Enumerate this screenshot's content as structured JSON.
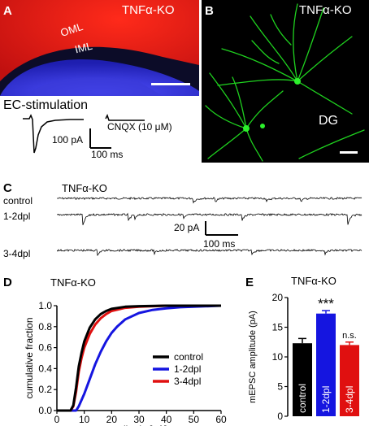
{
  "panels": {
    "A": {
      "letter": "A",
      "label": "TNFα-KO",
      "oml": "OML",
      "iml": "IML",
      "ec_title": "EC-stimulation",
      "cnqx": "CNQX (10 μM)",
      "scale_y": "100 pA",
      "scale_x": "100 ms"
    },
    "B": {
      "letter": "B",
      "label": "TNFα-KO",
      "dg": "DG"
    },
    "C": {
      "letter": "C",
      "label": "TNFα-KO",
      "rows": [
        "control",
        "1-2dpl",
        "3-4dpl"
      ],
      "scale_y": "20 pA",
      "scale_x": "100 ms"
    },
    "D": {
      "letter": "D",
      "label": "TNFα-KO"
    },
    "E": {
      "letter": "E",
      "label": "TNFα-KO"
    }
  },
  "colors": {
    "control": "#000000",
    "dpl12": "#1515e0",
    "dpl34": "#e01010"
  },
  "chart_data": [
    {
      "type": "line",
      "panel": "D",
      "xlabel": "amplitude [pA]",
      "ylabel": "cumulative fraction",
      "xlim": [
        0,
        60
      ],
      "ylim": [
        0,
        1.0
      ],
      "xticks": [
        "0",
        "10",
        "20",
        "30",
        "40",
        "50",
        "60"
      ],
      "yticks": [
        "0.0",
        "0.2",
        "0.4",
        "0.6",
        "0.8",
        "1.0"
      ],
      "legend_position": "bottom-right",
      "series": [
        {
          "name": "control",
          "color": "#000000",
          "x": [
            0,
            5,
            6,
            7,
            8,
            9,
            10,
            12,
            14,
            16,
            18,
            20,
            25,
            30,
            40,
            60
          ],
          "y": [
            0,
            0,
            0.05,
            0.22,
            0.42,
            0.55,
            0.66,
            0.79,
            0.87,
            0.92,
            0.95,
            0.97,
            0.99,
            0.995,
            1.0,
            1.0
          ]
        },
        {
          "name": "1-2dpl",
          "color": "#1515e0",
          "x": [
            0,
            7,
            8,
            10,
            12,
            14,
            16,
            18,
            20,
            22,
            25,
            30,
            35,
            40,
            45,
            50,
            60
          ],
          "y": [
            0,
            0,
            0.04,
            0.16,
            0.3,
            0.44,
            0.56,
            0.66,
            0.74,
            0.8,
            0.87,
            0.93,
            0.96,
            0.975,
            0.985,
            0.99,
            1.0
          ]
        },
        {
          "name": "3-4dpl",
          "color": "#e01010",
          "x": [
            0,
            5,
            6,
            7,
            8,
            9,
            10,
            12,
            14,
            16,
            18,
            20,
            25,
            30,
            40,
            60
          ],
          "y": [
            0,
            0,
            0.04,
            0.18,
            0.37,
            0.5,
            0.6,
            0.73,
            0.82,
            0.88,
            0.92,
            0.95,
            0.98,
            0.99,
            1.0,
            1.0
          ]
        }
      ]
    },
    {
      "type": "bar",
      "panel": "E",
      "ylabel": "mEPSC amplitude (pA)",
      "ylim": [
        0,
        20
      ],
      "yticks": [
        "0",
        "5",
        "10",
        "15",
        "20"
      ],
      "categories": [
        "control",
        "1-2dpl",
        "3-4dpl"
      ],
      "values": [
        12.3,
        17.3,
        12.0
      ],
      "errors": [
        0.8,
        0.5,
        0.5
      ],
      "colors": [
        "#000000",
        "#1515e0",
        "#e01010"
      ],
      "annotations": [
        "",
        "***",
        "n.s."
      ]
    }
  ]
}
